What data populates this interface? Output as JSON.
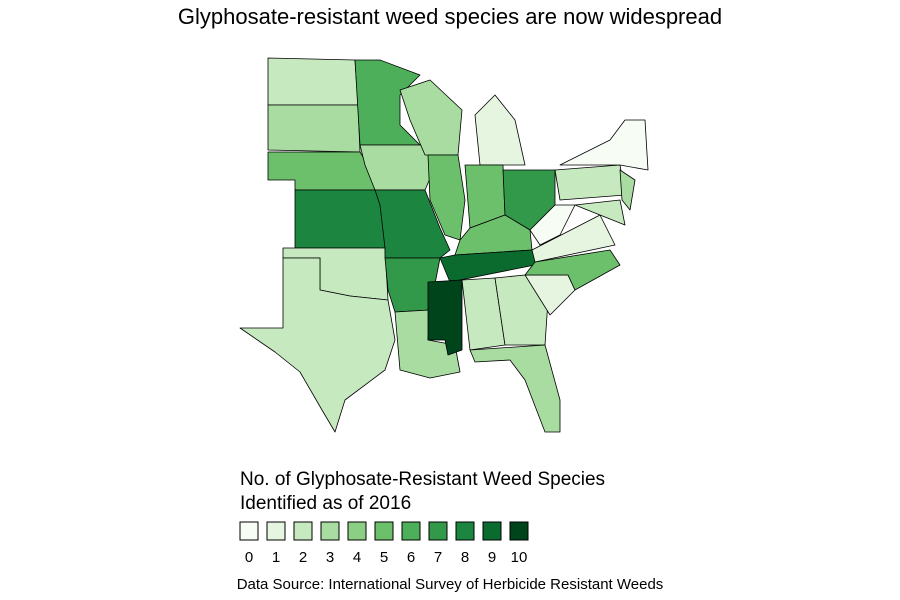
{
  "title": "Glyphosate-resistant weed species are now widespread",
  "values": [
    2,
    3,
    5,
    8,
    2,
    2,
    6,
    3,
    8,
    7,
    3,
    3,
    5,
    1,
    5,
    7,
    5,
    9,
    10,
    2,
    2,
    3,
    1,
    5,
    1,
    0,
    2,
    0,
    2,
    3
  ],
  "legend": {
    "title_lines": [
      "No. of Glyphosate-Resistant Weed Species",
      "Identified as of 2016"
    ],
    "labels": [
      0,
      1,
      2,
      3,
      4,
      5,
      6,
      7,
      8,
      9,
      10
    ],
    "colors": [
      "#f7fcf5",
      "#e5f5e0",
      "#c7e9c0",
      "#a8dca0",
      "#8bcf85",
      "#6cc06b",
      "#4daf5a",
      "#33994a",
      "#1c8540",
      "#0b6b2e",
      "#00441b"
    ]
  },
  "source": "Data Source: International Survey of Herbicide Resistant Weeds"
}
